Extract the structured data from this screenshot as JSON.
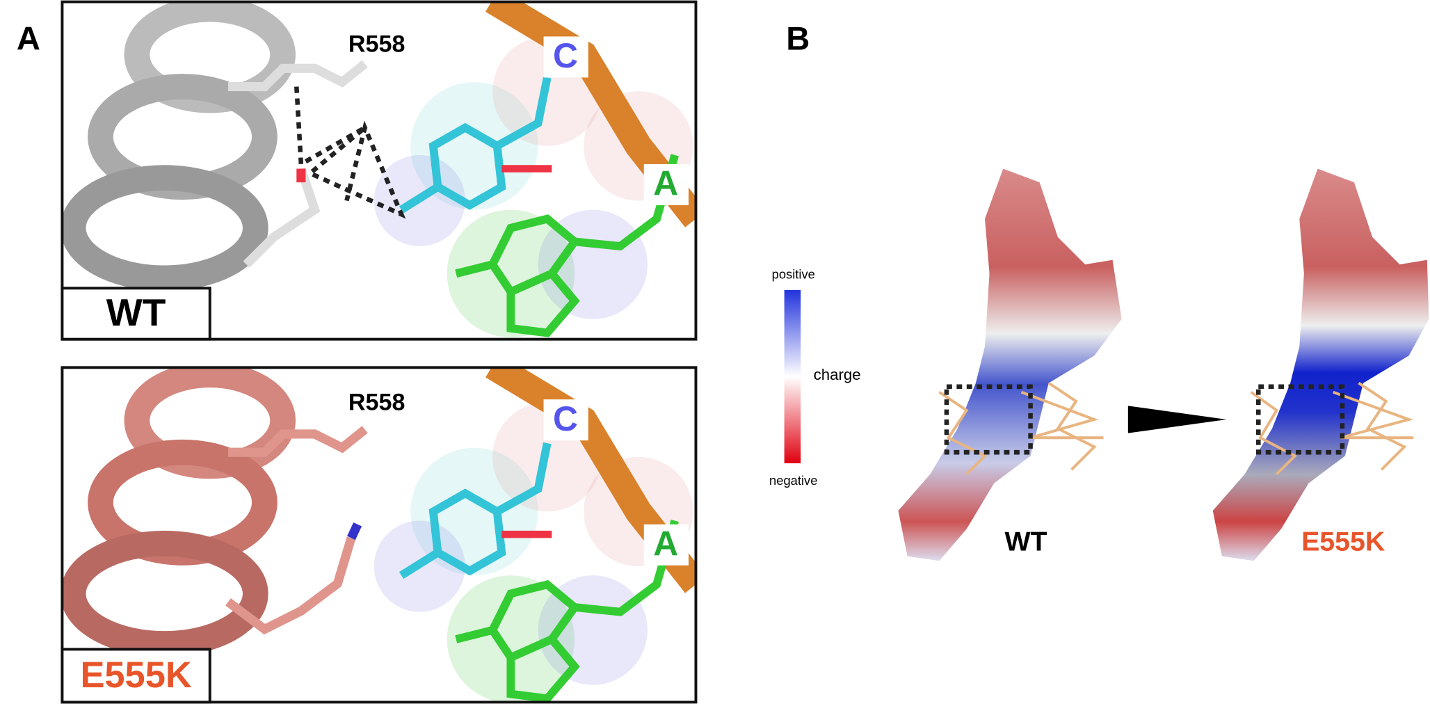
{
  "panel_a": {
    "label": "A",
    "wt": {
      "residue": "R558",
      "base_c": "C",
      "base_a": "A",
      "variant": "WT"
    },
    "mutant": {
      "residue": "R558",
      "base_c": "C",
      "base_a": "A",
      "variant": "E555K"
    }
  },
  "panel_b": {
    "label": "B",
    "colorbar": {
      "top": "positive",
      "title": "charge",
      "bottom": "negative"
    },
    "wt": "WT",
    "mutant": "E555K"
  }
}
